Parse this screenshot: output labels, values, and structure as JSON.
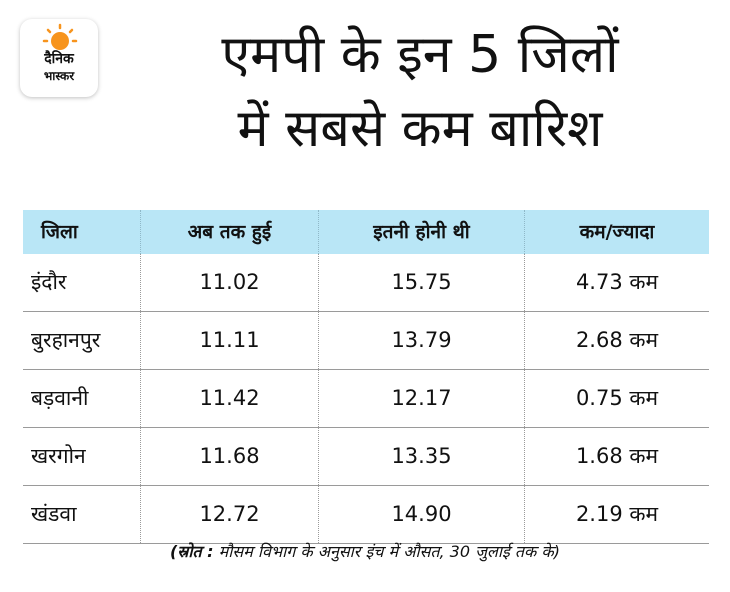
{
  "logo": {
    "line1": "दैनिक",
    "line2": "भास्कर",
    "sun_color": "#f7941d"
  },
  "title": {
    "line1": "एमपी के इन 5 जिलों",
    "line2": "में सबसे कम बारिश"
  },
  "table": {
    "header_bg": "#b9e6f6",
    "columns": [
      "जिला",
      "अब तक हुई",
      "इतनी होनी थी",
      "कम/ज्यादा"
    ],
    "rows": [
      {
        "district": "इंदौर",
        "received": "11.02",
        "expected": "15.75",
        "diff": "4.73 कम"
      },
      {
        "district": "बुरहानपुर",
        "received": "11.11",
        "expected": "13.79",
        "diff": "2.68 कम"
      },
      {
        "district": "बड़वानी",
        "received": "11.42",
        "expected": "12.17",
        "diff": "0.75 कम"
      },
      {
        "district": "खरगोन",
        "received": "11.68",
        "expected": "13.35",
        "diff": "1.68 कम"
      },
      {
        "district": "खंडवा",
        "received": "12.72",
        "expected": "14.90",
        "diff": "2.19 कम"
      }
    ]
  },
  "source": {
    "label": "(स्रोत :",
    "text": " मौसम विभाग के अनुसार इंच में औसत, 30 जुलाई तक के)"
  }
}
